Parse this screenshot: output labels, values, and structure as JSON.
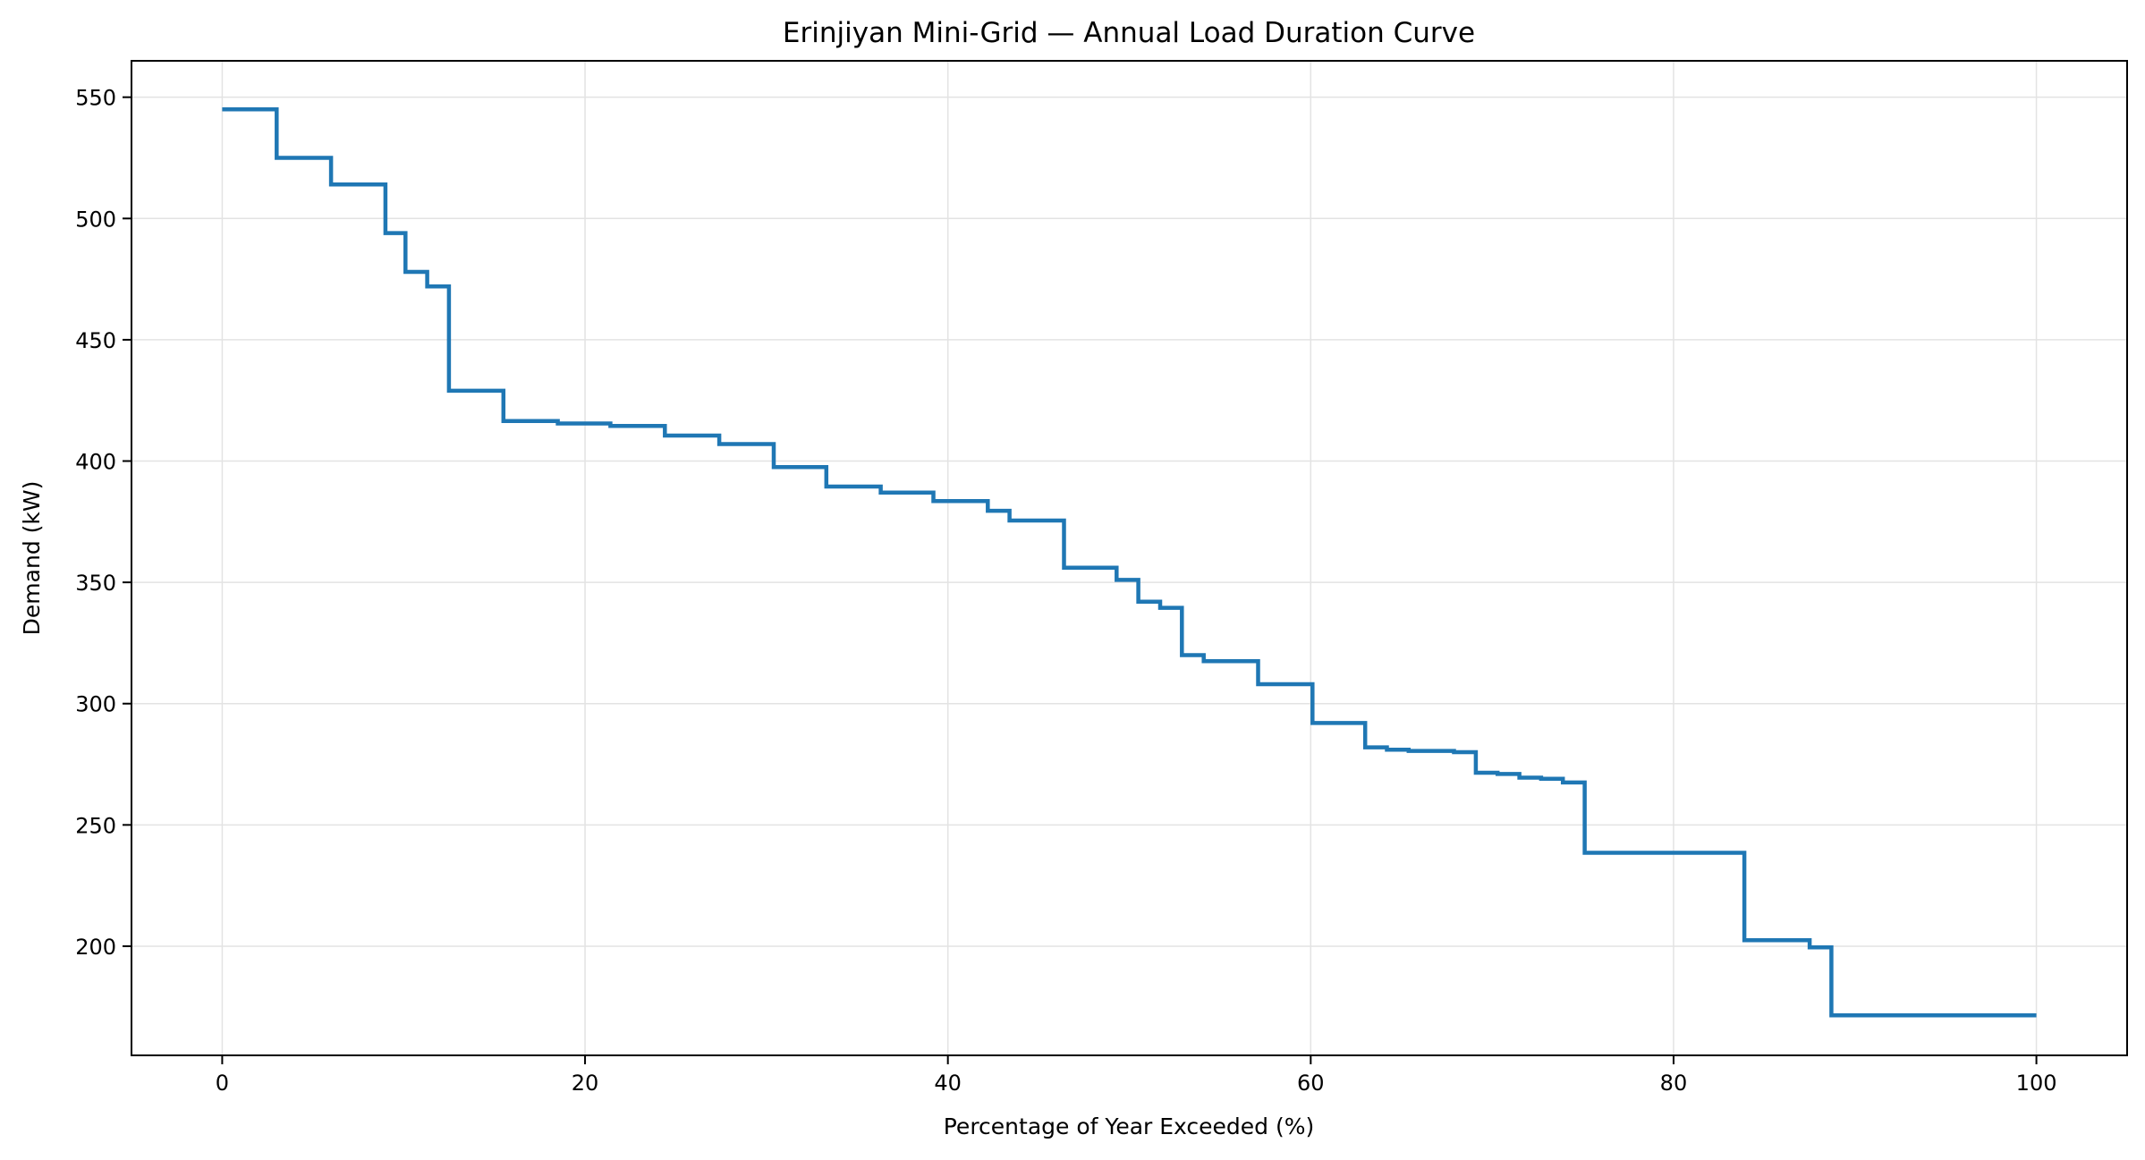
{
  "chart_data": {
    "type": "line",
    "step": true,
    "title": "Erinjiyan Mini-Grid — Annual Load Duration Curve",
    "xlabel": "Percentage of Year Exceeded (%)",
    "ylabel": "Demand (kW)",
    "xlim": [
      -5,
      105
    ],
    "ylim": [
      155,
      565
    ],
    "xticks": [
      0,
      20,
      40,
      60,
      80,
      100
    ],
    "yticks": [
      200,
      250,
      300,
      350,
      400,
      450,
      500,
      550
    ],
    "grid": true,
    "line_color": "#1f77b4",
    "series": [
      {
        "x": [
          0,
          3.0,
          6.0,
          9.0,
          10.1,
          11.3,
          12.5,
          15.5,
          18.5,
          21.4,
          24.4,
          27.4,
          30.4,
          33.3,
          36.3,
          39.2,
          42.2,
          43.4,
          46.4,
          49.3,
          50.5,
          51.7,
          52.9,
          54.1,
          57.1,
          60.1,
          63.0,
          64.2,
          65.4,
          67.9,
          69.1,
          70.3,
          71.5,
          72.7,
          73.9,
          75.1,
          83.9,
          87.5,
          88.7,
          100
        ],
        "y": [
          545,
          525,
          514,
          494,
          478,
          472,
          429,
          416.5,
          415.5,
          414.5,
          410.5,
          407,
          397.5,
          389.5,
          387,
          383.5,
          379.5,
          375.5,
          356,
          351,
          342,
          339.5,
          320,
          317.5,
          308,
          292,
          282,
          281,
          280.5,
          280,
          271.5,
          271,
          269.5,
          269,
          267.5,
          238.5,
          202.5,
          199.5,
          171.5,
          171.5
        ]
      }
    ]
  }
}
